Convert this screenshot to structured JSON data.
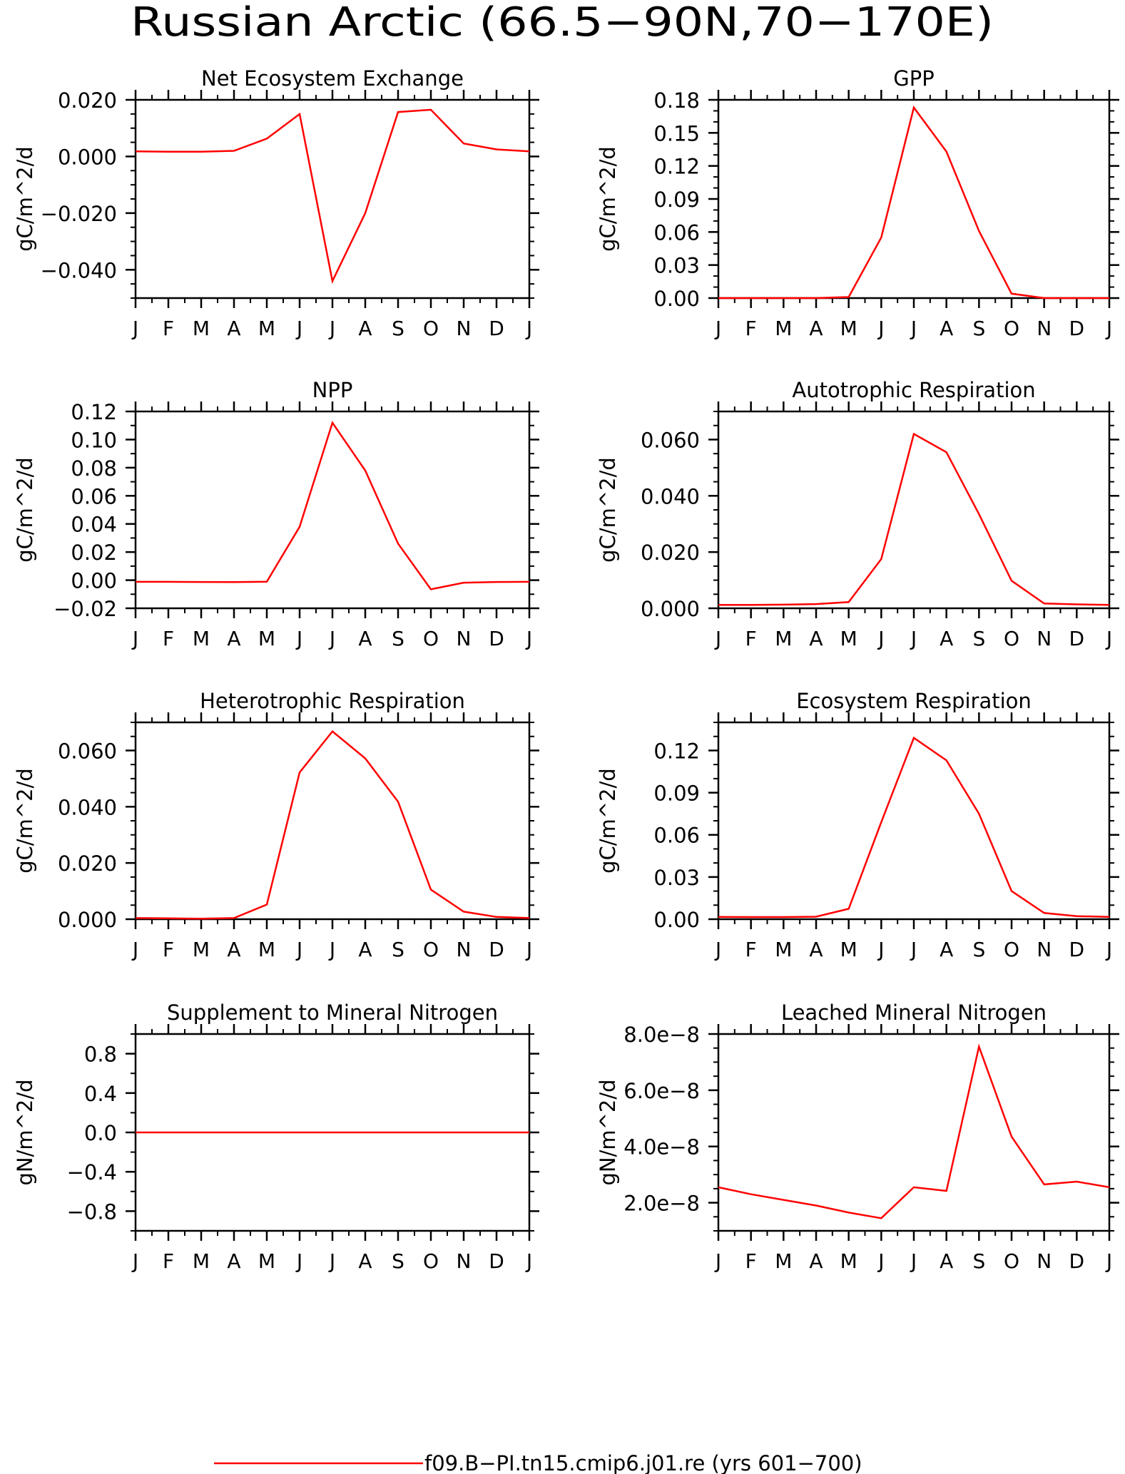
{
  "title": "Russian Arctic (66.5−90N,70−170E)",
  "legend": {
    "label": "f09.B−PI.tn15.cmip6.j01.re (yrs 601−700)",
    "color": "#ff0000"
  },
  "months": [
    "J",
    "F",
    "M",
    "A",
    "M",
    "J",
    "J",
    "A",
    "S",
    "O",
    "N",
    "D",
    "J"
  ],
  "chart_data": [
    {
      "type": "line",
      "title": "Net Ecosystem Exchange",
      "ylabel": "gC/m^2/d",
      "ylim": [
        -0.05,
        0.02
      ],
      "yticks": [
        -0.04,
        -0.02,
        0.0,
        0.02
      ],
      "ytick_labels": [
        "−0.040",
        "−0.020",
        "0.000",
        "0.020"
      ],
      "yminor": 0.005,
      "x": [
        "J",
        "F",
        "M",
        "A",
        "M",
        "J",
        "J",
        "A",
        "S",
        "O",
        "N",
        "D",
        "J"
      ],
      "series": [
        {
          "values": [
            0.0018,
            0.0017,
            0.0017,
            0.002,
            0.0063,
            0.015,
            -0.044,
            -0.02,
            0.0157,
            0.0165,
            0.0046,
            0.0025,
            0.0018
          ],
          "color": "#ff0000"
        }
      ]
    },
    {
      "type": "line",
      "title": "GPP",
      "ylabel": "gC/m^2/d",
      "ylim": [
        0,
        0.18
      ],
      "yticks": [
        0.0,
        0.03,
        0.06,
        0.09,
        0.12,
        0.15,
        0.18
      ],
      "ytick_labels": [
        "0.00",
        "0.03",
        "0.06",
        "0.09",
        "0.12",
        "0.15",
        "0.18"
      ],
      "yminor": 0.01,
      "x": [
        "J",
        "F",
        "M",
        "A",
        "M",
        "J",
        "J",
        "A",
        "S",
        "O",
        "N",
        "D",
        "J"
      ],
      "series": [
        {
          "values": [
            0.0,
            0.0,
            0.0,
            0.0,
            0.001,
            0.055,
            0.173,
            0.133,
            0.061,
            0.004,
            0.0,
            0.0,
            0.0
          ],
          "color": "#ff0000"
        }
      ]
    },
    {
      "type": "line",
      "title": "NPP",
      "ylabel": "gC/m^2/d",
      "ylim": [
        -0.02,
        0.12
      ],
      "yticks": [
        -0.02,
        0.0,
        0.02,
        0.04,
        0.06,
        0.08,
        0.1,
        0.12
      ],
      "ytick_labels": [
        "−0.02",
        "0.00",
        "0.02",
        "0.04",
        "0.06",
        "0.08",
        "0.10",
        "0.12"
      ],
      "yminor": 0.01,
      "x": [
        "J",
        "F",
        "M",
        "A",
        "M",
        "J",
        "J",
        "A",
        "S",
        "O",
        "N",
        "D",
        "J"
      ],
      "series": [
        {
          "values": [
            -0.0012,
            -0.0012,
            -0.0013,
            -0.0014,
            -0.0011,
            0.038,
            0.112,
            0.078,
            0.026,
            -0.0065,
            -0.0018,
            -0.0013,
            -0.0012
          ],
          "color": "#ff0000"
        }
      ]
    },
    {
      "type": "line",
      "title": "Autotrophic Respiration",
      "ylabel": "gC/m^2/d",
      "ylim": [
        0,
        0.07
      ],
      "yticks": [
        0.0,
        0.02,
        0.04,
        0.06
      ],
      "ytick_labels": [
        "0.000",
        "0.020",
        "0.040",
        "0.060"
      ],
      "yminor": 0.005,
      "x": [
        "J",
        "F",
        "M",
        "A",
        "M",
        "J",
        "J",
        "A",
        "S",
        "O",
        "N",
        "D",
        "J"
      ],
      "series": [
        {
          "values": [
            0.0012,
            0.0012,
            0.0013,
            0.0015,
            0.0022,
            0.0175,
            0.062,
            0.0555,
            0.0335,
            0.0098,
            0.0017,
            0.0014,
            0.0012
          ],
          "color": "#ff0000"
        }
      ]
    },
    {
      "type": "line",
      "title": "Heterotrophic Respiration",
      "ylabel": "gC/m^2/d",
      "ylim": [
        0,
        0.07
      ],
      "yticks": [
        0.0,
        0.02,
        0.04,
        0.06
      ],
      "ytick_labels": [
        "0.000",
        "0.020",
        "0.040",
        "0.060"
      ],
      "yminor": 0.005,
      "x": [
        "J",
        "F",
        "M",
        "A",
        "M",
        "J",
        "J",
        "A",
        "S",
        "O",
        "N",
        "D",
        "J"
      ],
      "series": [
        {
          "values": [
            0.0004,
            0.0003,
            0.0002,
            0.0004,
            0.0052,
            0.0522,
            0.0668,
            0.0572,
            0.0418,
            0.0105,
            0.0027,
            0.0008,
            0.0004
          ],
          "color": "#ff0000"
        }
      ]
    },
    {
      "type": "line",
      "title": "Ecosystem Respiration",
      "ylabel": "gC/m^2/d",
      "ylim": [
        0,
        0.14
      ],
      "yticks": [
        0.0,
        0.03,
        0.06,
        0.09,
        0.12
      ],
      "ytick_labels": [
        "0.00",
        "0.03",
        "0.06",
        "0.09",
        "0.12"
      ],
      "yminor": 0.01,
      "x": [
        "J",
        "F",
        "M",
        "A",
        "M",
        "J",
        "J",
        "A",
        "S",
        "O",
        "N",
        "D",
        "J"
      ],
      "series": [
        {
          "values": [
            0.0016,
            0.0015,
            0.0015,
            0.0018,
            0.0074,
            0.069,
            0.129,
            0.113,
            0.075,
            0.02,
            0.0044,
            0.0022,
            0.0016
          ],
          "color": "#ff0000"
        }
      ]
    },
    {
      "type": "line",
      "title": "Supplement to Mineral Nitrogen",
      "ylabel": "gN/m^2/d",
      "ylim": [
        -1.0,
        1.0
      ],
      "yticks": [
        -0.8,
        -0.4,
        0.0,
        0.4,
        0.8
      ],
      "ytick_labels": [
        "−0.8",
        "−0.4",
        "0.0",
        "0.4",
        "0.8"
      ],
      "yminor": 0.2,
      "x": [
        "J",
        "F",
        "M",
        "A",
        "M",
        "J",
        "J",
        "A",
        "S",
        "O",
        "N",
        "D",
        "J"
      ],
      "series": [
        {
          "values": [
            0,
            0,
            0,
            0,
            0,
            0,
            0,
            0,
            0,
            0,
            0,
            0,
            0
          ],
          "color": "#ff0000"
        }
      ]
    },
    {
      "type": "line",
      "title": "Leached Mineral Nitrogen",
      "ylabel": "gN/m^2/d",
      "ylim": [
        1e-08,
        8e-08
      ],
      "yticks": [
        2e-08,
        4e-08,
        6e-08,
        8e-08
      ],
      "ytick_labels": [
        "2.0e−8",
        "4.0e−8",
        "6.0e−8",
        "8.0e−8"
      ],
      "yminor": 5e-09,
      "x": [
        "J",
        "F",
        "M",
        "A",
        "M",
        "J",
        "J",
        "A",
        "S",
        "O",
        "N",
        "D",
        "J"
      ],
      "series": [
        {
          "values": [
            2.55e-08,
            2.3e-08,
            2.1e-08,
            1.9e-08,
            1.65e-08,
            1.45e-08,
            2.55e-08,
            2.42e-08,
            7.55e-08,
            4.35e-08,
            2.65e-08,
            2.75e-08,
            2.55e-08
          ],
          "color": "#ff0000"
        }
      ]
    }
  ]
}
